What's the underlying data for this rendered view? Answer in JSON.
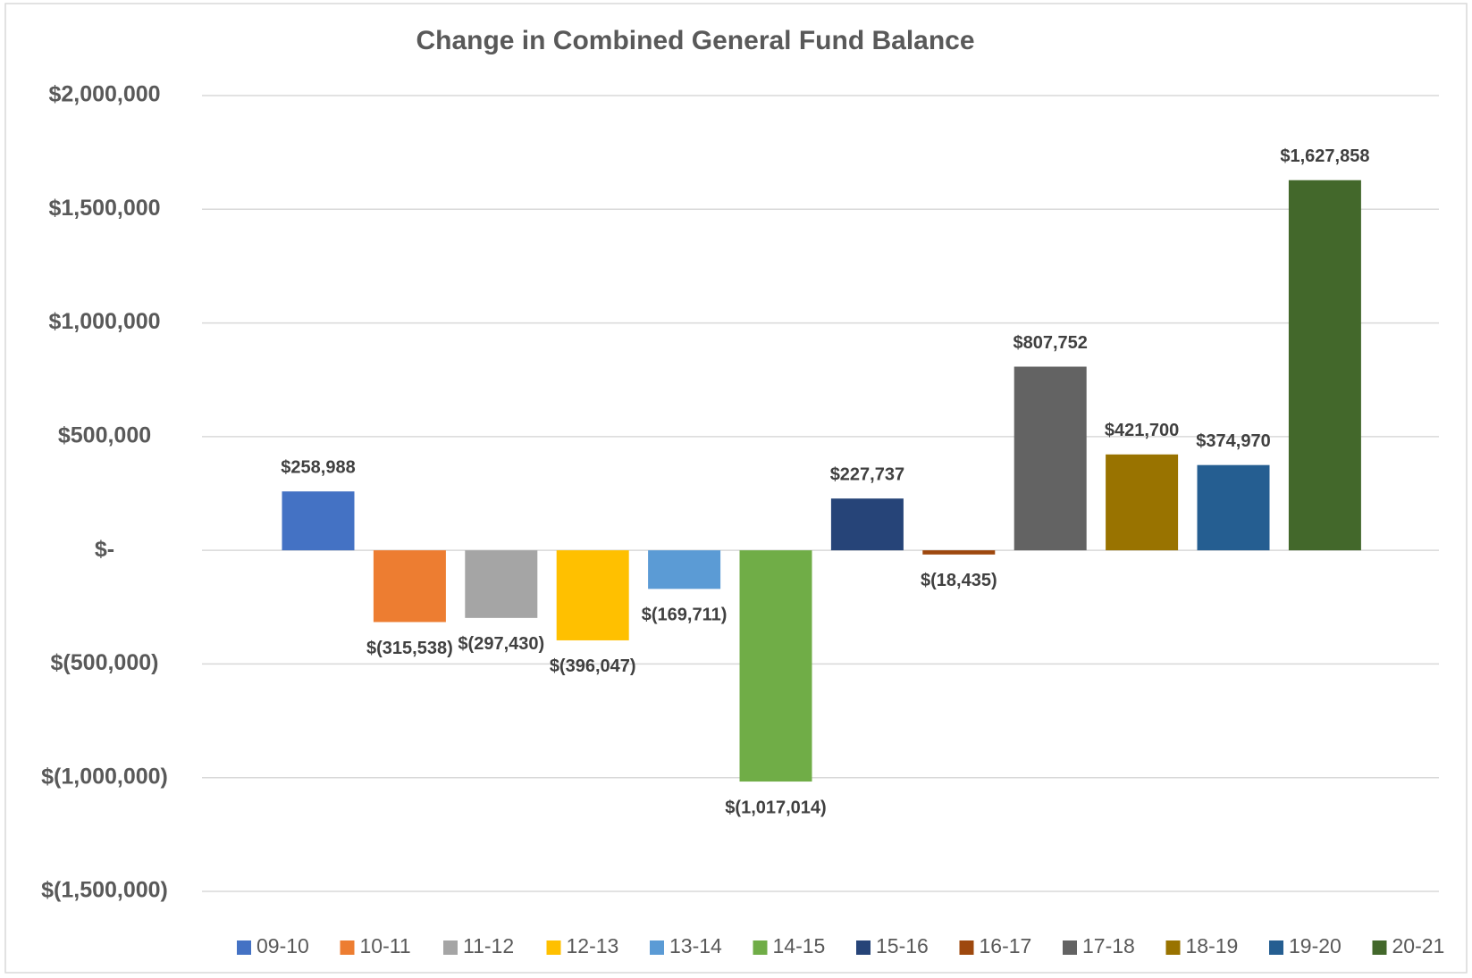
{
  "chart_data": {
    "type": "bar",
    "title": "Change in Combined General Fund Balance",
    "ylim": [
      -1500000,
      2000000
    ],
    "yticks": [
      {
        "value": 2000000,
        "label": "$2,000,000"
      },
      {
        "value": 1500000,
        "label": "$1,500,000"
      },
      {
        "value": 1000000,
        "label": "$1,000,000"
      },
      {
        "value": 500000,
        "label": "$500,000"
      },
      {
        "value": 0,
        "label": "$-"
      },
      {
        "value": -500000,
        "label": "$(500,000)"
      },
      {
        "value": -1000000,
        "label": "$(1,000,000)"
      },
      {
        "value": -1500000,
        "label": "$(1,500,000)"
      }
    ],
    "grid": true,
    "legend": "bottom",
    "series": [
      {
        "name": "09-10",
        "color": "#4472c4",
        "values": [
          258988
        ],
        "value_labels": [
          "$258,988"
        ]
      },
      {
        "name": "10-11",
        "color": "#ed7d31",
        "values": [
          -315538
        ],
        "value_labels": [
          "$(315,538)"
        ]
      },
      {
        "name": "11-12",
        "color": "#a5a5a5",
        "values": [
          -297430
        ],
        "value_labels": [
          "$(297,430)"
        ]
      },
      {
        "name": "12-13",
        "color": "#ffc000",
        "values": [
          -396047
        ],
        "value_labels": [
          "$(396,047)"
        ]
      },
      {
        "name": "13-14",
        "color": "#5b9bd5",
        "values": [
          -169711
        ],
        "value_labels": [
          "$(169,711)"
        ]
      },
      {
        "name": "14-15",
        "color": "#70ad47",
        "values": [
          -1017014
        ],
        "value_labels": [
          "$(1,017,014)"
        ]
      },
      {
        "name": "15-16",
        "color": "#264478",
        "values": [
          227737
        ],
        "value_labels": [
          "$227,737"
        ]
      },
      {
        "name": "16-17",
        "color": "#9e480e",
        "values": [
          -18435
        ],
        "value_labels": [
          "$(18,435)"
        ]
      },
      {
        "name": "17-18",
        "color": "#636363",
        "values": [
          807752
        ],
        "value_labels": [
          "$807,752"
        ]
      },
      {
        "name": "18-19",
        "color": "#997300",
        "values": [
          421700
        ],
        "value_labels": [
          "$421,700"
        ]
      },
      {
        "name": "19-20",
        "color": "#255e91",
        "values": [
          374970
        ],
        "value_labels": [
          "$374,970"
        ]
      },
      {
        "name": "20-21",
        "color": "#43682b",
        "values": [
          1627858
        ],
        "value_labels": [
          "$1,627,858"
        ]
      }
    ]
  }
}
